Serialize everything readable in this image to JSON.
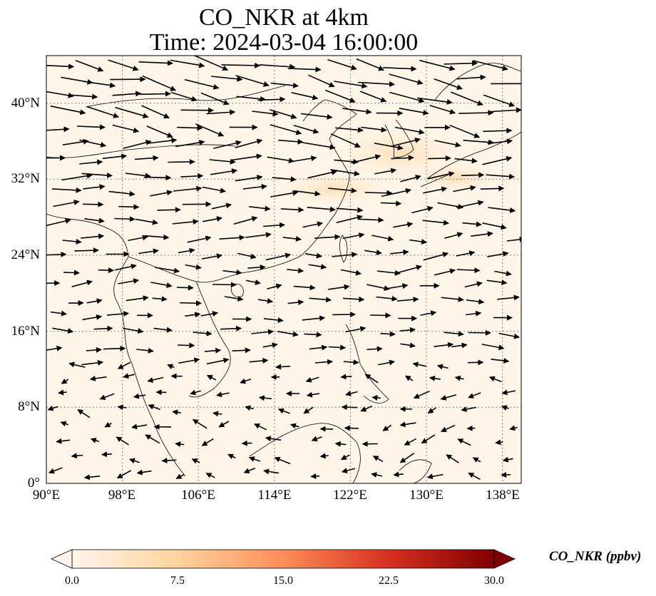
{
  "title": {
    "line1": "CO_NKR at 4km",
    "line2": "Time: 2024-03-04 16:00:00"
  },
  "map": {
    "x_ticks": [
      "90°E",
      "98°E",
      "106°E",
      "114°E",
      "122°E",
      "130°E",
      "138°E"
    ],
    "y_ticks": [
      "40°N",
      "32°N",
      "24°N",
      "16°N",
      "8°N",
      "0°"
    ],
    "lon_range": [
      90,
      140
    ],
    "lat_range": [
      0,
      45
    ],
    "gridlines": true,
    "gridline_style": "dotted",
    "background_color": "#fff6e9",
    "plume_color": "#fde3c0",
    "coastline_color": "#000000",
    "vector_color": "#000000"
  },
  "colorbar": {
    "label": "CO_NKR (ppbv)",
    "ticks": [
      "0.0",
      "7.5",
      "15.0",
      "22.5",
      "30.0"
    ],
    "range": [
      0,
      30
    ],
    "colormap": [
      "#fff5eb",
      "#fdd49e",
      "#fc8d59",
      "#d7301f",
      "#7f0000"
    ],
    "extend": "both"
  }
}
